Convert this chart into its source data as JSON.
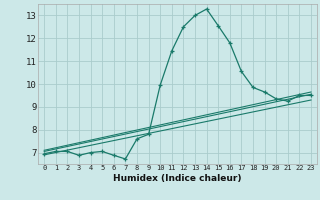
{
  "title": "",
  "xlabel": "Humidex (Indice chaleur)",
  "bg_color": "#cce8e8",
  "grid_color": "#aacccc",
  "line_color": "#1a7a6a",
  "spine_color": "#aaaaaa",
  "xlim": [
    -0.5,
    23.5
  ],
  "ylim": [
    6.5,
    13.5
  ],
  "yticks": [
    7,
    8,
    9,
    10,
    11,
    12,
    13
  ],
  "xticks": [
    0,
    1,
    2,
    3,
    4,
    5,
    6,
    7,
    8,
    9,
    10,
    11,
    12,
    13,
    14,
    15,
    16,
    17,
    18,
    19,
    20,
    21,
    22,
    23
  ],
  "main_x": [
    0,
    1,
    2,
    3,
    4,
    5,
    6,
    7,
    8,
    9,
    10,
    11,
    12,
    13,
    14,
    15,
    16,
    17,
    18,
    19,
    20,
    21,
    22,
    23
  ],
  "main_y": [
    6.95,
    7.05,
    7.05,
    6.88,
    7.0,
    7.05,
    6.88,
    6.72,
    7.6,
    7.8,
    9.95,
    11.45,
    12.5,
    13.0,
    13.28,
    12.55,
    11.8,
    10.55,
    9.85,
    9.65,
    9.35,
    9.25,
    9.5,
    9.5
  ],
  "line2_x": [
    0,
    23
  ],
  "line2_y": [
    7.05,
    9.55
  ],
  "line3_x": [
    0,
    23
  ],
  "line3_y": [
    7.1,
    9.65
  ],
  "line4_x": [
    0,
    23
  ],
  "line4_y": [
    6.9,
    9.3
  ]
}
